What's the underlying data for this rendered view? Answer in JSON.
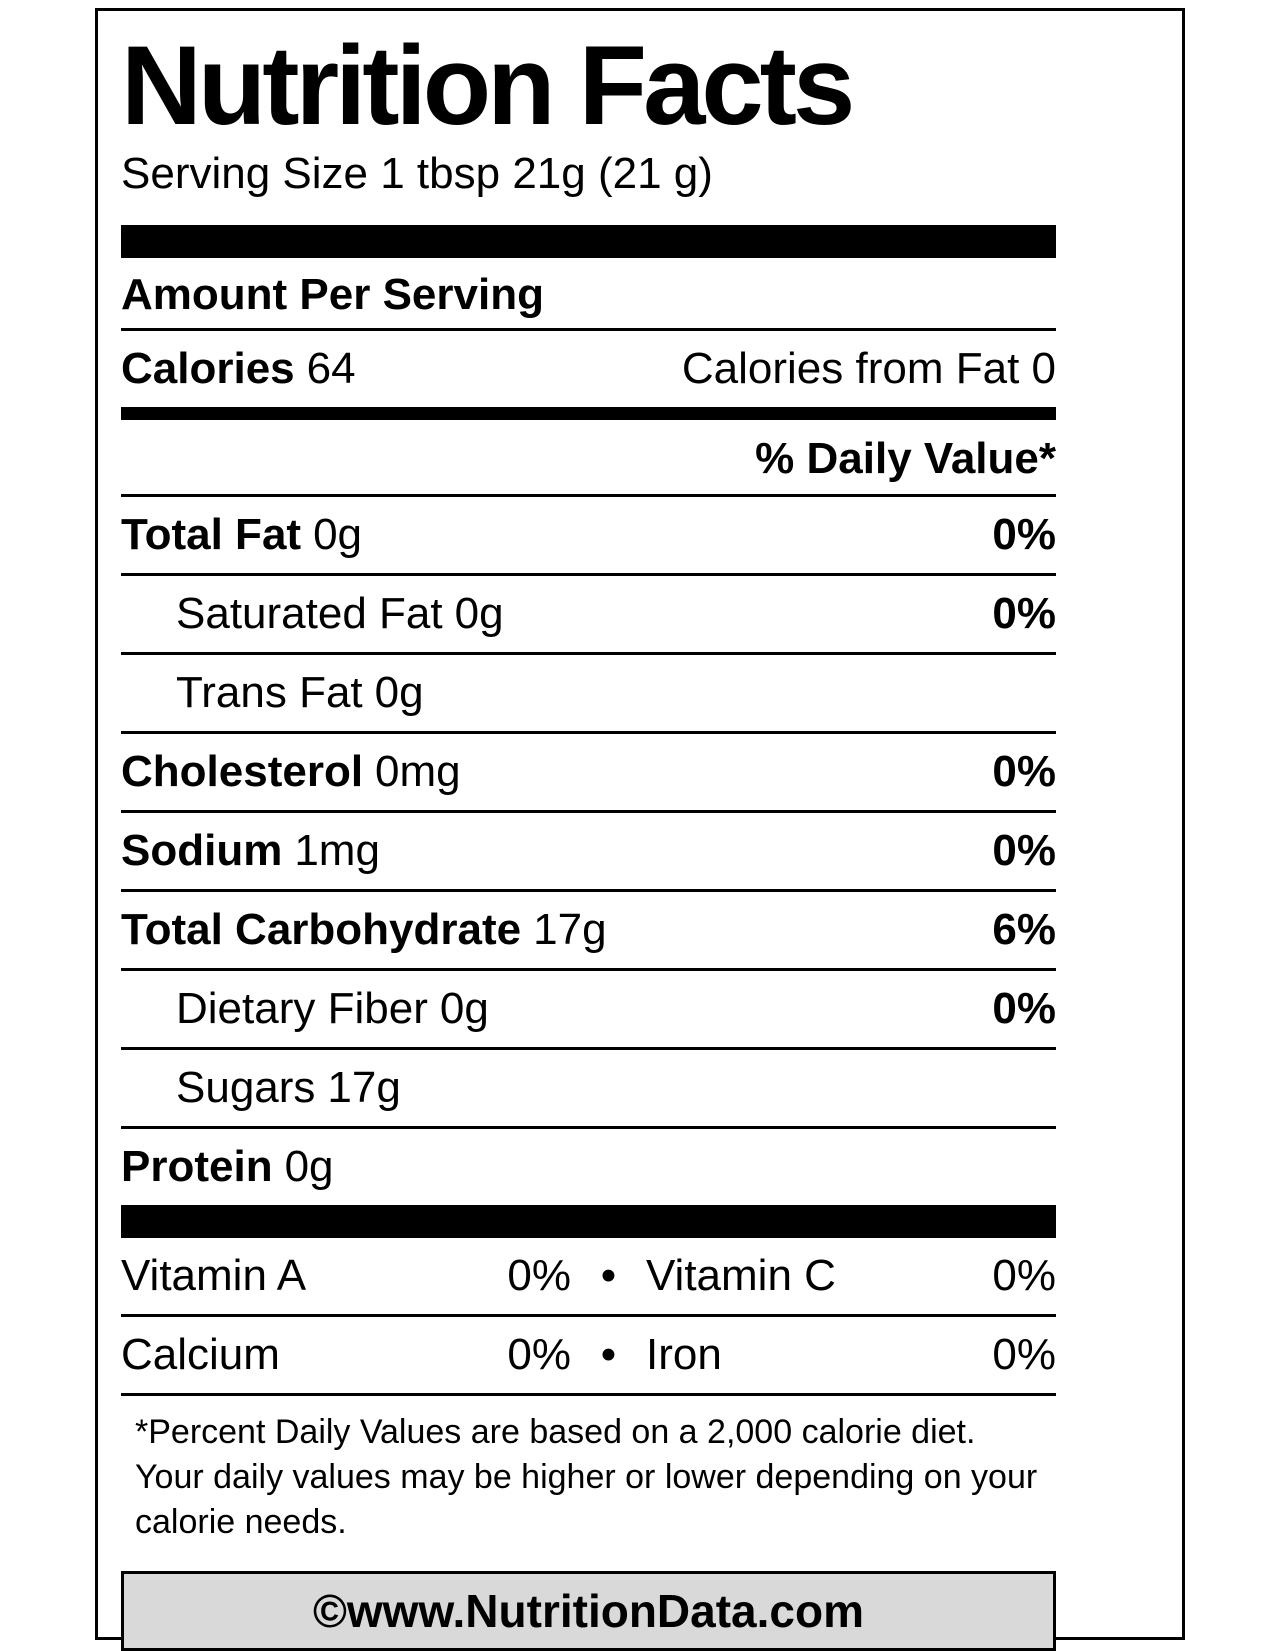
{
  "label": {
    "title": "Nutrition Facts",
    "serving_size": "Serving Size 1 tbsp 21g (21 g)",
    "amount_per_serving": "Amount Per Serving",
    "calories_label": "Calories",
    "calories_value": "64",
    "calories_from_fat": "Calories from Fat 0",
    "daily_value_header": "% Daily Value*",
    "bullet": "•",
    "nutrients": [
      {
        "name": "Total Fat",
        "amount": "0g",
        "dv": "0%"
      },
      {
        "name": "Saturated Fat",
        "amount": "0g",
        "dv": "0%"
      },
      {
        "name": "Trans Fat",
        "amount": "0g",
        "dv": ""
      },
      {
        "name": "Cholesterol",
        "amount": "0mg",
        "dv": "0%"
      },
      {
        "name": "Sodium",
        "amount": "1mg",
        "dv": "0%"
      },
      {
        "name": "Total Carbohydrate",
        "amount": "17g",
        "dv": "6%"
      },
      {
        "name": "Dietary Fiber",
        "amount": "0g",
        "dv": "0%"
      },
      {
        "name": "Sugars",
        "amount": "17g",
        "dv": ""
      },
      {
        "name": "Protein",
        "amount": "0g",
        "dv": ""
      }
    ],
    "micronutrients": [
      {
        "left_name": "Vitamin A",
        "left_value": "0%",
        "right_name": "Vitamin C",
        "right_value": "0%"
      },
      {
        "left_name": "Calcium",
        "left_value": "0%",
        "right_name": "Iron",
        "right_value": "0%"
      }
    ],
    "footnote": "*Percent Daily Values are based on a 2,000 calorie diet. Your daily values may be higher or lower depending on your calorie needs.",
    "footer": "©www.NutritionData.com",
    "colors": {
      "text": "#000000",
      "border": "#000000",
      "footer_background": "#d9d9d9"
    }
  }
}
